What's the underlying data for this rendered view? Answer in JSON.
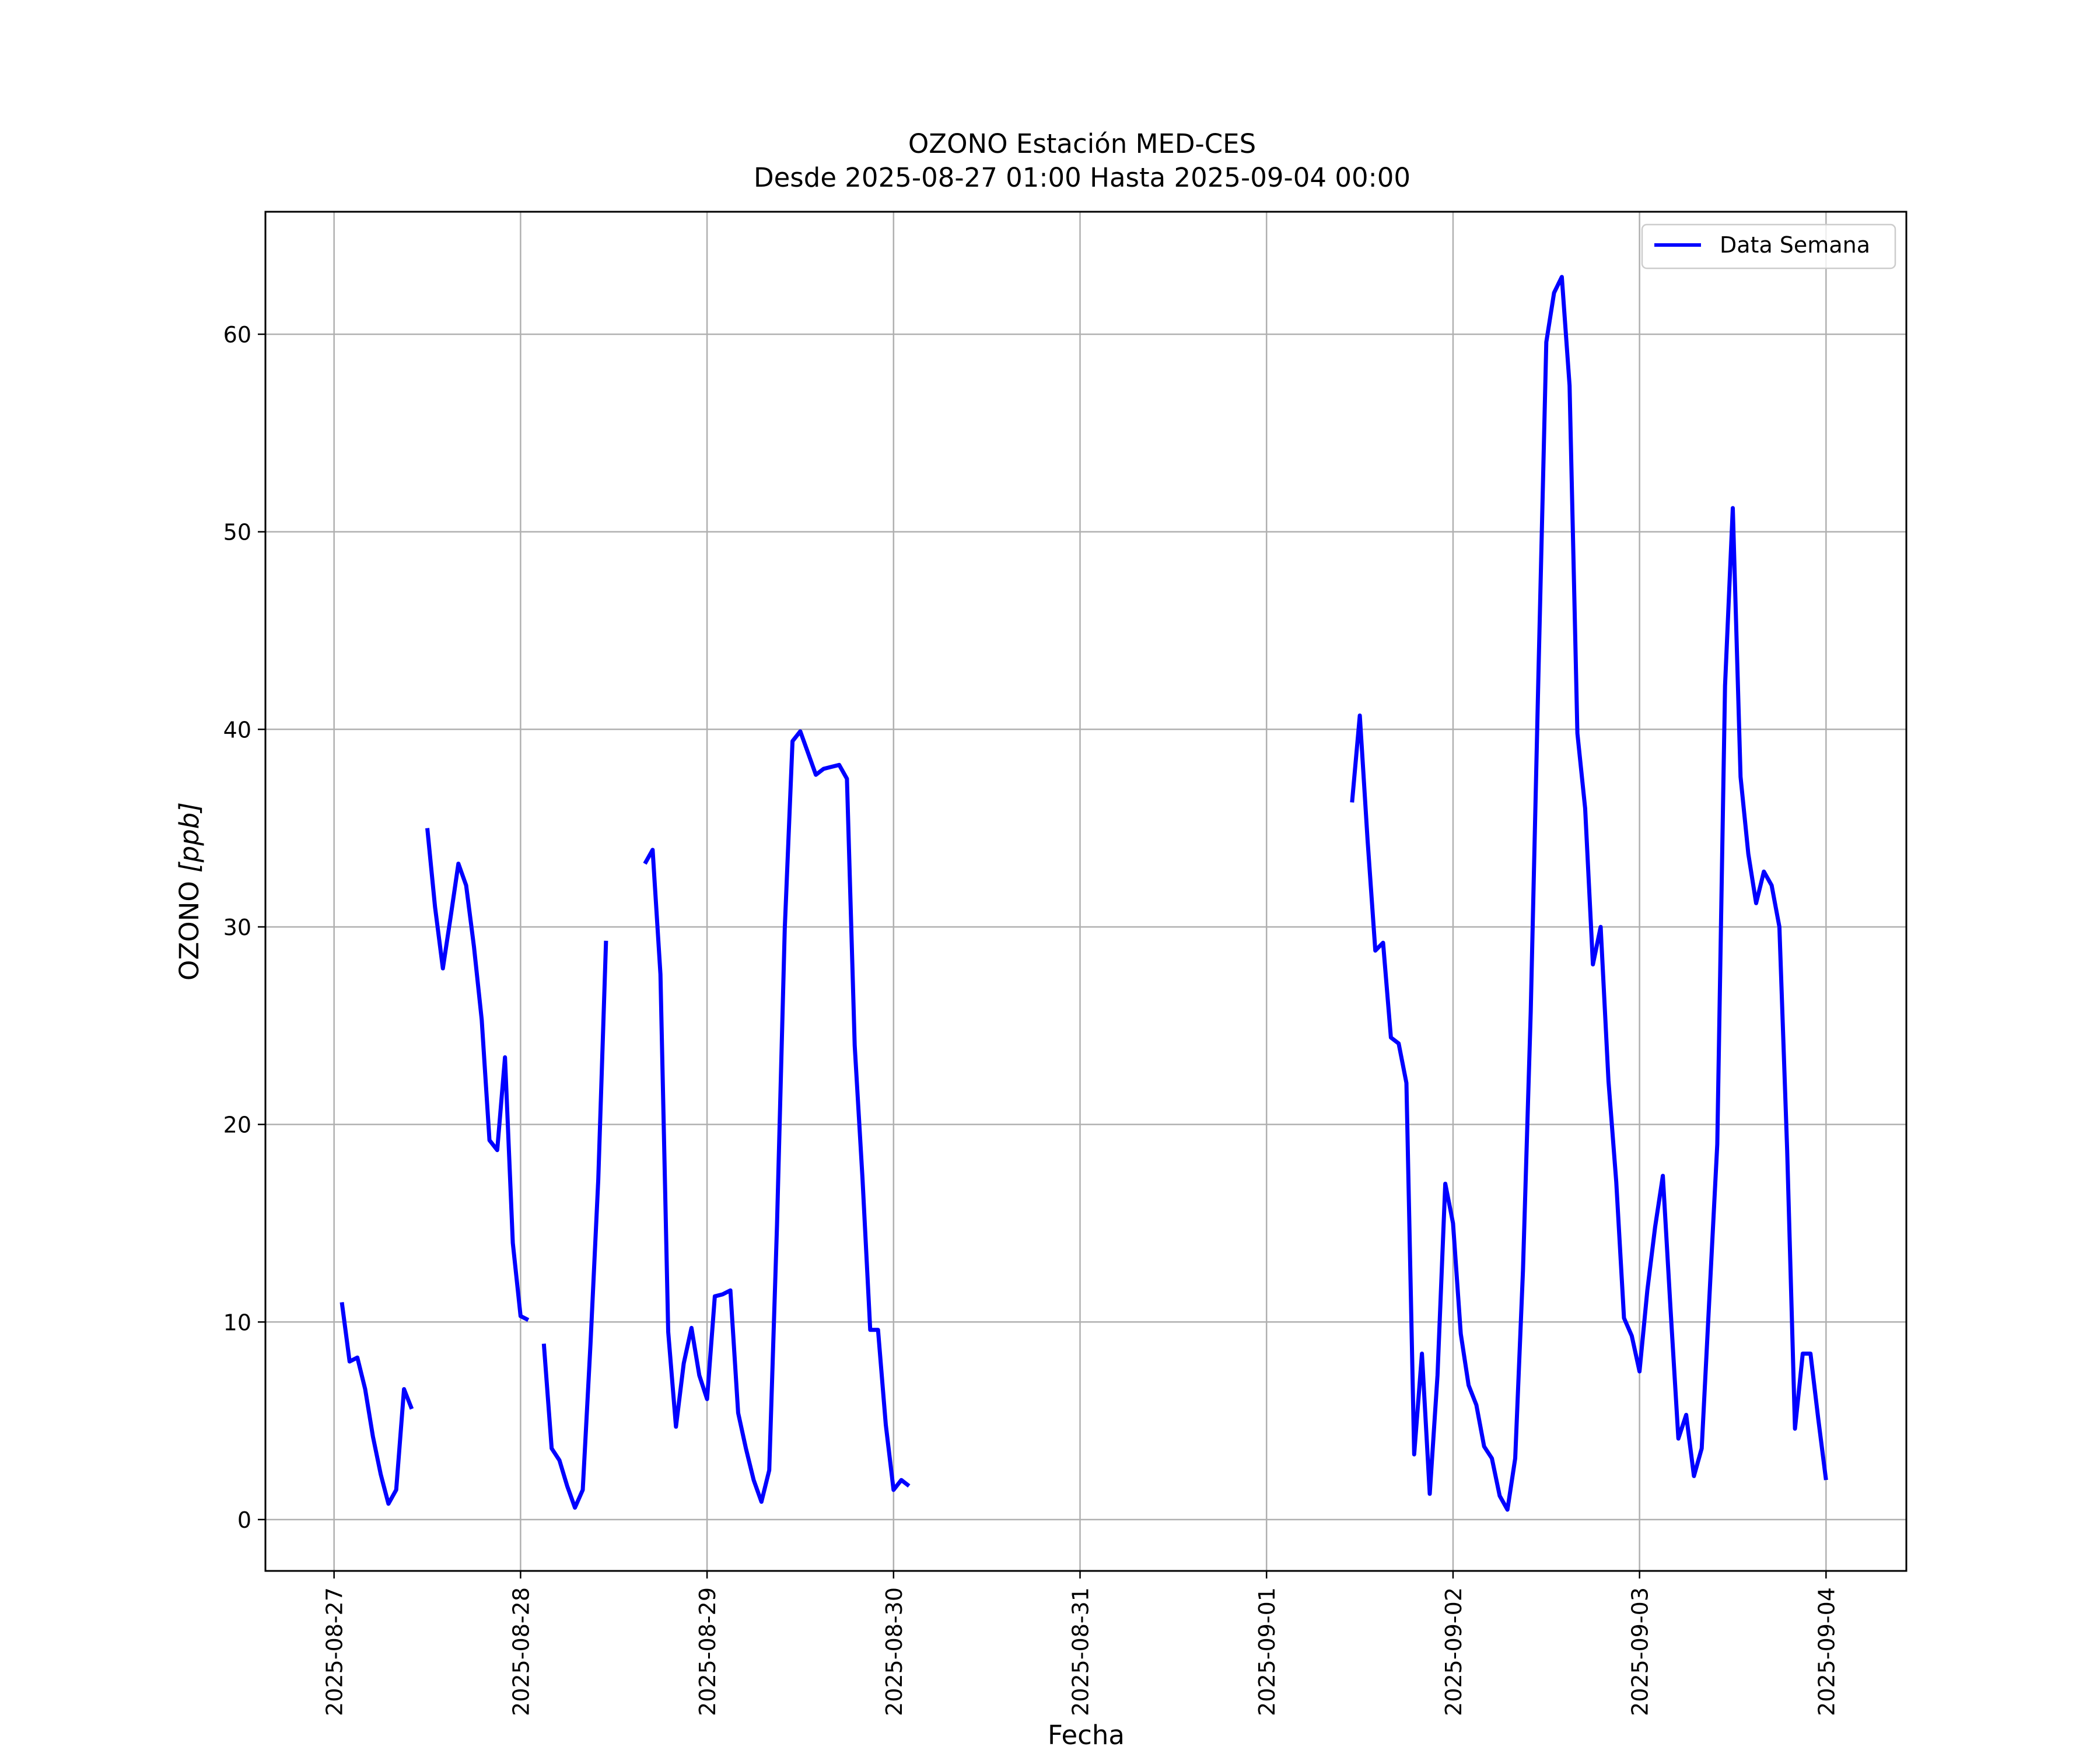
{
  "chart_data": {
    "type": "line",
    "title": "OZONO Estación MED-CES",
    "subtitle": "Desde 2025-08-27 01:00 Hasta 2025-09-04 00:00",
    "xlabel": "Fecha",
    "ylabel_main": "OZONO ",
    "ylabel_unit": "[ppb]",
    "xlim": [
      "2025-08-26 15:10",
      "2025-09-04 10:20"
    ],
    "ylim": [
      -2.6,
      66.2
    ],
    "grid": true,
    "legend_position": "top-right",
    "x_ticks": [
      "2025-08-27",
      "2025-08-28",
      "2025-08-29",
      "2025-08-30",
      "2025-08-31",
      "2025-09-01",
      "2025-09-02",
      "2025-09-03",
      "2025-09-04"
    ],
    "y_ticks": [
      0,
      10,
      20,
      30,
      40,
      50,
      60
    ],
    "series": [
      {
        "name": "Data Semana",
        "color": "#0000ff",
        "segments": [
          [
            [
              "2025-08-27 01:00",
              11.0
            ],
            [
              "2025-08-27 02:00",
              8.0
            ],
            [
              "2025-08-27 03:00",
              8.2
            ],
            [
              "2025-08-27 04:00",
              6.6
            ],
            [
              "2025-08-27 05:00",
              4.2
            ],
            [
              "2025-08-27 06:00",
              2.3
            ],
            [
              "2025-08-27 07:00",
              0.8
            ],
            [
              "2025-08-27 08:00",
              1.5
            ],
            [
              "2025-08-27 09:00",
              6.6
            ],
            [
              "2025-08-27 10:00",
              5.6
            ]
          ],
          [
            [
              "2025-08-27 12:00",
              35.0
            ],
            [
              "2025-08-27 13:00",
              31.0
            ],
            [
              "2025-08-27 14:00",
              27.9
            ],
            [
              "2025-08-27 15:00",
              30.5
            ],
            [
              "2025-08-27 16:00",
              33.2
            ],
            [
              "2025-08-27 17:00",
              32.1
            ],
            [
              "2025-08-27 18:00",
              29.0
            ],
            [
              "2025-08-27 19:00",
              25.3
            ],
            [
              "2025-08-27 20:00",
              19.2
            ],
            [
              "2025-08-27 21:00",
              18.7
            ],
            [
              "2025-08-27 22:00",
              23.4
            ],
            [
              "2025-08-27 23:00",
              14.0
            ],
            [
              "2025-08-28 00:00",
              10.3
            ],
            [
              "2025-08-28 01:00",
              10.1
            ]
          ],
          [
            [
              "2025-08-28 03:00",
              8.9
            ],
            [
              "2025-08-28 04:00",
              3.6
            ],
            [
              "2025-08-28 05:00",
              3.0
            ],
            [
              "2025-08-28 06:00",
              1.7
            ],
            [
              "2025-08-28 07:00",
              0.6
            ],
            [
              "2025-08-28 08:00",
              1.5
            ],
            [
              "2025-08-28 09:00",
              8.9
            ],
            [
              "2025-08-28 10:00",
              17.2
            ],
            [
              "2025-08-28 11:00",
              29.3
            ]
          ],
          [
            [
              "2025-08-28 16:00",
              33.2
            ],
            [
              "2025-08-28 17:00",
              33.9
            ],
            [
              "2025-08-28 18:00",
              27.6
            ],
            [
              "2025-08-28 19:00",
              9.5
            ],
            [
              "2025-08-28 20:00",
              4.7
            ],
            [
              "2025-08-28 21:00",
              7.9
            ],
            [
              "2025-08-28 22:00",
              9.7
            ],
            [
              "2025-08-28 23:00",
              7.3
            ],
            [
              "2025-08-29 00:00",
              6.1
            ],
            [
              "2025-08-29 01:00",
              11.3
            ],
            [
              "2025-08-29 02:00",
              11.4
            ],
            [
              "2025-08-29 03:00",
              11.6
            ],
            [
              "2025-08-29 04:00",
              5.4
            ],
            [
              "2025-08-29 05:00",
              3.6
            ],
            [
              "2025-08-29 06:00",
              2.0
            ],
            [
              "2025-08-29 07:00",
              0.9
            ],
            [
              "2025-08-29 08:00",
              2.5
            ],
            [
              "2025-08-29 09:00",
              14.9
            ],
            [
              "2025-08-29 10:00",
              29.9
            ],
            [
              "2025-08-29 11:00",
              39.4
            ],
            [
              "2025-08-29 12:00",
              39.9
            ],
            [
              "2025-08-29 13:00",
              38.8
            ],
            [
              "2025-08-29 14:00",
              37.7
            ],
            [
              "2025-08-29 15:00",
              38.0
            ],
            [
              "2025-08-29 16:00",
              38.1
            ],
            [
              "2025-08-29 17:00",
              38.2
            ],
            [
              "2025-08-29 18:00",
              37.5
            ],
            [
              "2025-08-29 19:00",
              24.0
            ],
            [
              "2025-08-29 20:00",
              17.3
            ],
            [
              "2025-08-29 21:00",
              9.6
            ],
            [
              "2025-08-29 22:00",
              9.6
            ],
            [
              "2025-08-29 23:00",
              4.8
            ],
            [
              "2025-08-30 00:00",
              1.5
            ],
            [
              "2025-08-30 01:00",
              2.0
            ],
            [
              "2025-08-30 02:00",
              1.7
            ]
          ],
          [
            [
              "2025-09-01 11:00",
              36.3
            ],
            [
              "2025-09-01 12:00",
              40.7
            ],
            [
              "2025-09-01 13:00",
              34.4
            ],
            [
              "2025-09-01 14:00",
              28.8
            ],
            [
              "2025-09-01 15:00",
              29.2
            ],
            [
              "2025-09-01 16:00",
              24.4
            ],
            [
              "2025-09-01 17:00",
              24.1
            ],
            [
              "2025-09-01 18:00",
              22.1
            ],
            [
              "2025-09-01 19:00",
              3.3
            ],
            [
              "2025-09-01 20:00",
              8.4
            ],
            [
              "2025-09-01 21:00",
              1.3
            ],
            [
              "2025-09-01 22:00",
              7.3
            ],
            [
              "2025-09-01 23:00",
              17.0
            ],
            [
              "2025-09-02 00:00",
              15.0
            ],
            [
              "2025-09-02 01:00",
              9.4
            ],
            [
              "2025-09-02 02:00",
              6.8
            ],
            [
              "2025-09-02 03:00",
              5.8
            ],
            [
              "2025-09-02 04:00",
              3.7
            ],
            [
              "2025-09-02 05:00",
              3.1
            ],
            [
              "2025-09-02 06:00",
              1.2
            ],
            [
              "2025-09-02 07:00",
              0.5
            ],
            [
              "2025-09-02 08:00",
              3.1
            ],
            [
              "2025-09-02 09:00",
              12.6
            ],
            [
              "2025-09-02 10:00",
              25.7
            ],
            [
              "2025-09-02 11:00",
              43.0
            ],
            [
              "2025-09-02 12:00",
              59.6
            ],
            [
              "2025-09-02 13:00",
              62.1
            ],
            [
              "2025-09-02 14:00",
              62.9
            ],
            [
              "2025-09-02 15:00",
              57.4
            ],
            [
              "2025-09-02 16:00",
              39.8
            ],
            [
              "2025-09-02 17:00",
              36.0
            ],
            [
              "2025-09-02 18:00",
              28.1
            ],
            [
              "2025-09-02 19:00",
              30.0
            ],
            [
              "2025-09-02 20:00",
              22.2
            ],
            [
              "2025-09-02 21:00",
              17.1
            ],
            [
              "2025-09-02 22:00",
              10.2
            ],
            [
              "2025-09-02 23:00",
              9.3
            ],
            [
              "2025-09-03 00:00",
              7.5
            ],
            [
              "2025-09-03 01:00",
              11.6
            ],
            [
              "2025-09-03 02:00",
              14.8
            ],
            [
              "2025-09-03 03:00",
              17.4
            ],
            [
              "2025-09-03 04:00",
              10.6
            ],
            [
              "2025-09-03 05:00",
              4.1
            ],
            [
              "2025-09-03 06:00",
              5.3
            ],
            [
              "2025-09-03 07:00",
              2.2
            ],
            [
              "2025-09-03 08:00",
              3.6
            ],
            [
              "2025-09-03 09:00",
              11.3
            ],
            [
              "2025-09-03 10:00",
              19.0
            ],
            [
              "2025-09-03 11:00",
              42.2
            ],
            [
              "2025-09-03 12:00",
              51.2
            ],
            [
              "2025-09-03 13:00",
              37.6
            ],
            [
              "2025-09-03 14:00",
              33.7
            ],
            [
              "2025-09-03 15:00",
              31.2
            ],
            [
              "2025-09-03 16:00",
              32.8
            ],
            [
              "2025-09-03 17:00",
              32.1
            ],
            [
              "2025-09-03 18:00",
              30.0
            ],
            [
              "2025-09-03 19:00",
              18.7
            ],
            [
              "2025-09-03 20:00",
              4.6
            ],
            [
              "2025-09-03 21:00",
              8.4
            ],
            [
              "2025-09-03 22:00",
              8.4
            ],
            [
              "2025-09-03 23:00",
              5.1
            ],
            [
              "2025-09-04 00:00",
              2.0
            ]
          ]
        ]
      }
    ]
  }
}
